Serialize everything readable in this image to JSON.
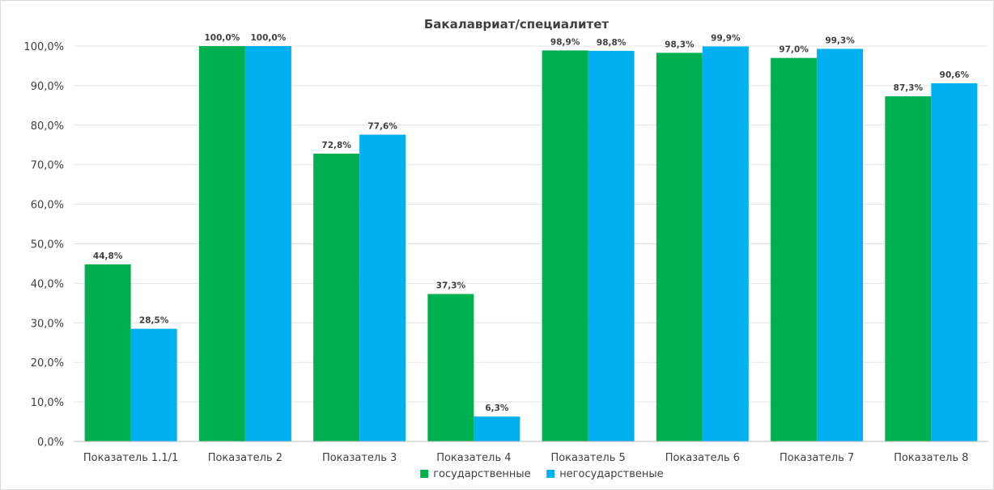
{
  "chart_data": {
    "type": "bar",
    "title": "Бакалавриат/специалитет",
    "xlabel": "",
    "ylabel": "",
    "ylim": [
      0,
      100
    ],
    "ytick_step": 10,
    "ytick_format": "percent_1_decimal_comma",
    "grid": true,
    "legend_position": "bottom",
    "categories": [
      "Показатель 1.1/1",
      "Показатель 2",
      "Показатель 3",
      "Показатель 4",
      "Показатель 5",
      "Показатель 6",
      "Показатель 7",
      "Показатель 8"
    ],
    "series": [
      {
        "name": "государственные",
        "color": "#00b050",
        "values": [
          44.8,
          100.0,
          72.8,
          37.3,
          98.9,
          98.3,
          97.0,
          87.3
        ],
        "labels": [
          "44,8%",
          "100,0%",
          "72,8%",
          "37,3%",
          "98,9%",
          "98,3%",
          "97,0%",
          "87,3%"
        ]
      },
      {
        "name": "негосударственые",
        "color": "#00b0f0",
        "values": [
          28.5,
          100.0,
          77.6,
          6.3,
          98.8,
          99.9,
          99.3,
          90.6
        ],
        "labels": [
          "28,5%",
          "100,0%",
          "77,6%",
          "6,3%",
          "98,8%",
          "99,9%",
          "99,3%",
          "90,6%"
        ]
      }
    ]
  }
}
